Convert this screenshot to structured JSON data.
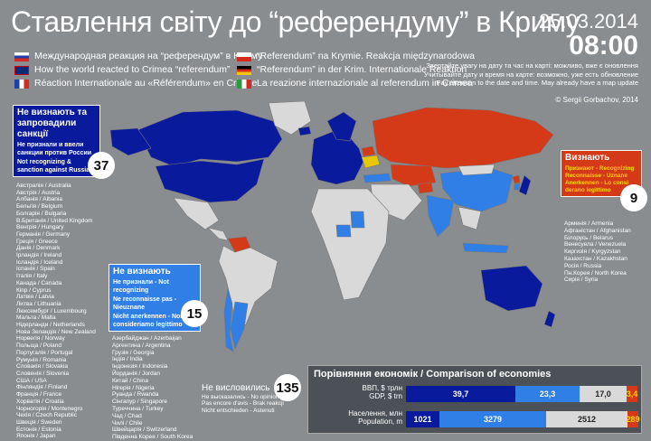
{
  "title": "Ставлення світу до “референдуму” в Криму",
  "date": "25.03.2014",
  "time": "08:00",
  "subtitles": [
    {
      "text": "Международная реакция на “референдум” в Крыму",
      "flag": "ru"
    },
    {
      "text": "How the world reacted to Crimea “referendum”",
      "flag": "uk"
    },
    {
      "text": "Réaction Internationale au «Référendum» en Crimée",
      "flag": "fr"
    }
  ],
  "subtitles2": [
    {
      "text": "“Referendum” na Krymie. Reakcja międzynarodowa",
      "flag": "pl"
    },
    {
      "text": "“Referendum” in der Krim. Internationale Reaktion",
      "flag": "de"
    },
    {
      "text": "La reazione internazionale al referendum in Crimea",
      "flag": "it"
    }
  ],
  "note": "Звертайте увагу на дату та час на карті: можливо, вже є оновлення\nУчитывайте дату и время на карте: возможно, уже есть обновление\nPay attention to the date and time. May already have a map update",
  "credit": "© Sergii Gorbachov, 2014",
  "sanctions": {
    "head": "Не визнають та запровадили санкції",
    "ru": "Не признали и ввели санкции против России",
    "en": "Not recognizing & sanction against Russia",
    "count": "37",
    "countries": [
      "Австралія / Australia",
      "Австрія / Austria",
      "Албанія / Albania",
      "Бельгія / Belgium",
      "Болгарія / Bulgaria",
      "В.Британія / United Kingdom",
      "Венгрія / Hungary",
      "Германія / Germany",
      "Греція / Greece",
      "Данія / Denmark",
      "Ірландія / Ireland",
      "Ісландія / Iceland",
      "Іспанія / Spain",
      "Італія / Italy",
      "Канада / Canada",
      "Кіпр / Cyprus",
      "Латвія / Latvia",
      "Литва / Lithuania",
      "Люксембург / Luxembourg",
      "Мальта / Malta",
      "Нідерланди / Netherlands",
      "Нова Зеландія / New Zealand",
      "Норвегія / Norway",
      "Польща / Poland",
      "Португалія / Portugal",
      "Румунія / Romania",
      "Словакія / Slovakia",
      "Словенія / Slovenia",
      "США / USA",
      "Фінляндія / Finland",
      "Франція / France",
      "Хорватія / Croatia",
      "Чорногорія / Montenegro",
      "Чехія / Czech Republic",
      "Швеція / Sweden",
      "Естонія / Estonia",
      "Японія / Japan"
    ]
  },
  "not_recognizing": {
    "head": "Не визнають",
    "ru": "Не признали - Not recognizing",
    "fr": "Ne reconnaisse pas - Nieuznane",
    "de": "Nicht anerkennen - Non lo consideriamo legittimo",
    "count": "15",
    "countries": [
      "Азербайджан / Azerbaijan",
      "Аргентина / Argentina",
      "Грузія / Georgia",
      "Індія / India",
      "Індонезія / Indonesia",
      "Йорданія / Jordan",
      "Китай / China",
      "Нігерія / Nigeria",
      "Руанда / Rwanda",
      "Сінгапур / Singapore",
      "Туреччина / Turkey",
      "Чад / Chad",
      "Чилі / Chile",
      "Швейцарія / Switzerland",
      "Південна Корея / South Korea"
    ]
  },
  "recognizing": {
    "head": "Визнають",
    "sub": "Признают - Recognizing Reconnaisse - Uznane Anerkennen - Lo consi derano legittimo",
    "count": "9",
    "countries": [
      "Арменія / Armenia",
      "Афганістан / Afghanistan",
      "Білорусь / Belarus",
      "Венесуела / Venezuela",
      "Киргизія / Kyrgyzstan",
      "Казахстан / Kazakhstan",
      "Росія / Russia",
      "Пн.Корея / North Korea",
      "Сирія / Syria"
    ]
  },
  "silent": {
    "head": "Не висловились",
    "text": "Не высказались - No opinion yet\nPas encore d'avis - Brak reakcji\nNicht entschieden - Astenuti",
    "count": "135"
  },
  "economy": {
    "head": "Порівняння економік / Comparison of economies",
    "gdp_label": "ВВП, $ трлн\nGDP, $ trn",
    "pop_label": "Населення, млн\nPopulation, m",
    "gdp": [
      "39,7",
      "23,3",
      "17,0",
      "3,4"
    ],
    "pop": [
      "1021",
      "3279",
      "2512",
      "289"
    ],
    "gdp_values": [
      39.7,
      23.3,
      17.0,
      3.4
    ],
    "pop_values": [
      1021,
      3279,
      2512,
      289
    ]
  },
  "colors": {
    "sanction": "#0a1a9c",
    "not_recognizing": "#2f7fe6",
    "recognizing": "#d43a18",
    "silent": "#d9d9d9",
    "ukraine": "#e8c800"
  }
}
